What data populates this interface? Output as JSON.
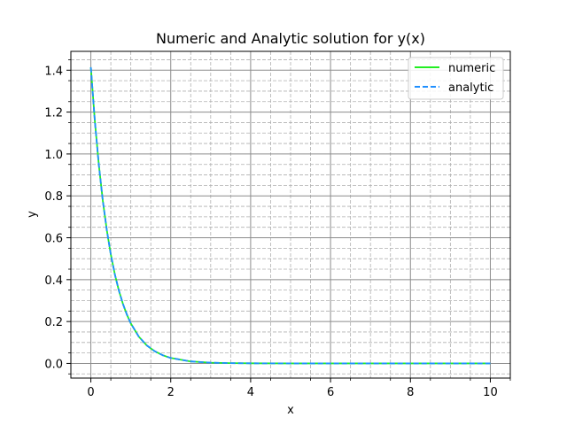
{
  "chart_data": {
    "type": "line",
    "title": "Numeric and Analytic solution for y(x)",
    "xlabel": "x",
    "ylabel": "y",
    "xlim": [
      -0.5,
      10.5
    ],
    "ylim": [
      -0.07,
      1.49
    ],
    "xticks": [
      0,
      2,
      4,
      6,
      8,
      10
    ],
    "xtick_labels": [
      "0",
      "2",
      "4",
      "6",
      "8",
      "10"
    ],
    "yticks": [
      0.0,
      0.2,
      0.4,
      0.6,
      0.8,
      1.0,
      1.2,
      1.4
    ],
    "ytick_labels": [
      "0.0",
      "0.2",
      "0.4",
      "0.6",
      "0.8",
      "1.0",
      "1.2",
      "1.4"
    ],
    "grid": true,
    "minor_grid": true,
    "legend_position": "upper-right",
    "series": [
      {
        "name": "numeric",
        "color": "#22ee22",
        "style": "solid",
        "x": [
          0,
          0.1,
          0.2,
          0.3,
          0.4,
          0.5,
          0.6,
          0.7,
          0.8,
          0.9,
          1.0,
          1.2,
          1.4,
          1.6,
          1.8,
          2.0,
          2.5,
          3.0,
          3.5,
          4.0,
          5.0,
          6.0,
          7.0,
          8.0,
          9.0,
          10.0
        ],
        "y": [
          1.414,
          1.158,
          0.948,
          0.776,
          0.636,
          0.52,
          0.426,
          0.349,
          0.286,
          0.234,
          0.191,
          0.128,
          0.086,
          0.058,
          0.039,
          0.026,
          0.0095,
          0.0035,
          0.0013,
          0.0005,
          0.0001,
          0.0,
          0.0,
          0.0,
          0.0,
          0.0
        ]
      },
      {
        "name": "analytic",
        "color": "#1f8fff",
        "style": "dashed",
        "x": [
          0,
          0.1,
          0.2,
          0.3,
          0.4,
          0.5,
          0.6,
          0.7,
          0.8,
          0.9,
          1.0,
          1.2,
          1.4,
          1.6,
          1.8,
          2.0,
          2.5,
          3.0,
          3.5,
          4.0,
          5.0,
          6.0,
          7.0,
          8.0,
          9.0,
          10.0
        ],
        "y": [
          1.414,
          1.158,
          0.948,
          0.776,
          0.636,
          0.52,
          0.426,
          0.349,
          0.286,
          0.234,
          0.191,
          0.128,
          0.086,
          0.058,
          0.039,
          0.026,
          0.0095,
          0.0035,
          0.0013,
          0.0005,
          0.0001,
          0.0,
          0.0,
          0.0,
          0.0,
          0.0
        ]
      }
    ]
  }
}
